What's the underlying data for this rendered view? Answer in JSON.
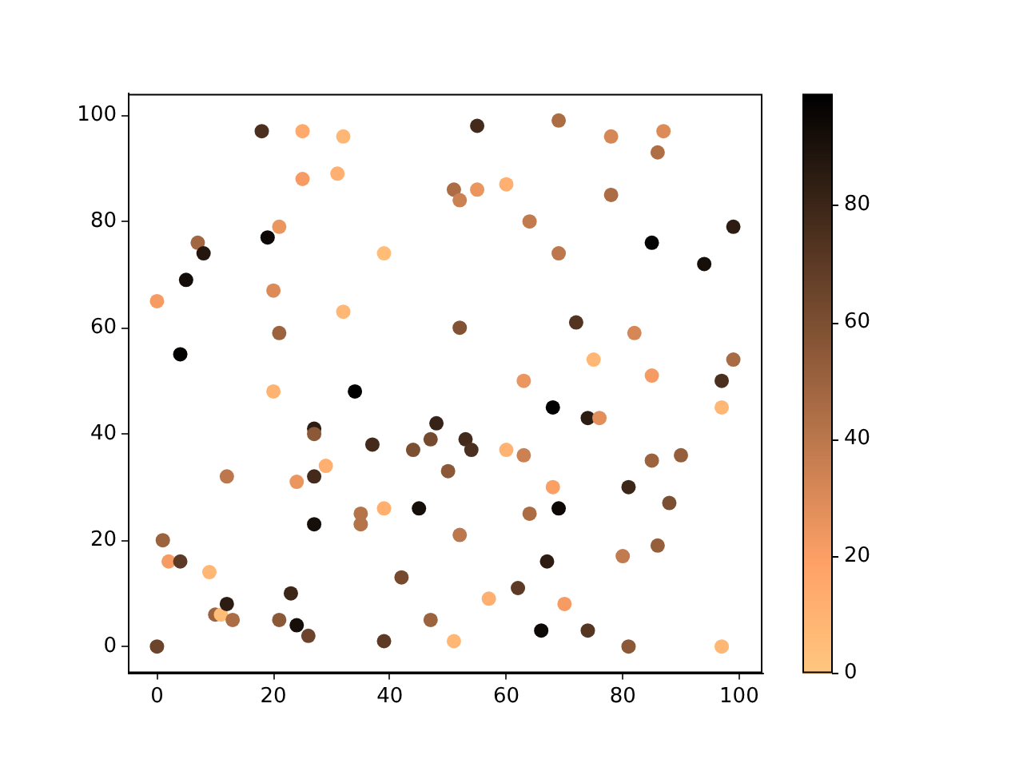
{
  "chart_data": {
    "type": "scatter",
    "x": [
      18,
      25,
      32,
      25,
      31,
      21,
      19,
      7,
      8,
      39,
      5,
      0,
      20,
      32,
      21,
      4,
      55,
      69,
      78,
      87,
      86,
      51,
      52,
      55,
      60,
      78,
      64,
      69,
      85,
      99,
      94,
      52,
      72,
      82,
      75,
      99,
      63,
      85,
      97,
      20,
      34,
      27,
      27,
      37,
      44,
      47,
      48,
      50,
      12,
      24,
      27,
      29,
      35,
      35,
      27,
      39,
      45,
      1,
      2,
      4,
      9,
      10,
      11,
      12,
      13,
      23,
      21,
      24,
      26,
      39,
      42,
      47,
      0,
      68,
      74,
      76,
      97,
      53,
      54,
      60,
      63,
      85,
      90,
      68,
      81,
      88,
      69,
      64,
      52,
      80,
      86,
      67,
      62,
      57,
      70,
      51,
      66,
      74,
      81,
      97
    ],
    "values": [
      97,
      97,
      96,
      88,
      89,
      79,
      77,
      76,
      74,
      74,
      69,
      65,
      67,
      63,
      59,
      55,
      98,
      99,
      96,
      97,
      93,
      86,
      84,
      86,
      87,
      85,
      80,
      74,
      76,
      79,
      72,
      60,
      61,
      59,
      54,
      54,
      50,
      51,
      50,
      48,
      48,
      41,
      40,
      38,
      37,
      39,
      42,
      33,
      32,
      31,
      32,
      34,
      25,
      23,
      23,
      26,
      26,
      20,
      16,
      16,
      14,
      6,
      6,
      8,
      5,
      10,
      5,
      4,
      2,
      1,
      13,
      5,
      0,
      45,
      43,
      43,
      45,
      39,
      37,
      37,
      36,
      35,
      36,
      30,
      30,
      27,
      26,
      25,
      21,
      17,
      19,
      16,
      11,
      9,
      8,
      1,
      3,
      3,
      0,
      0
    ],
    "cvalues": [
      75,
      15,
      8,
      22,
      12,
      25,
      95,
      48,
      88,
      5,
      93,
      22,
      30,
      8,
      50,
      98,
      78,
      45,
      32,
      30,
      44,
      45,
      35,
      25,
      12,
      45,
      38,
      40,
      97,
      85,
      92,
      58,
      73,
      32,
      8,
      46,
      25,
      22,
      75,
      10,
      99,
      85,
      55,
      78,
      60,
      62,
      82,
      55,
      40,
      25,
      78,
      12,
      42,
      42,
      92,
      12,
      92,
      50,
      22,
      70,
      8,
      50,
      5,
      85,
      45,
      80,
      55,
      92,
      65,
      70,
      62,
      50,
      65,
      99,
      85,
      28,
      8,
      78,
      75,
      10,
      35,
      50,
      52,
      20,
      80,
      60,
      95,
      45,
      40,
      38,
      52,
      85,
      70,
      12,
      22,
      8,
      95,
      72,
      55,
      8
    ],
    "xlim": [
      -5,
      104
    ],
    "ylim": [
      -5,
      104
    ],
    "xticks": [
      0,
      20,
      40,
      60,
      80,
      100
    ],
    "yticks": [
      0,
      20,
      40,
      60,
      80,
      100
    ],
    "clim": [
      0,
      99
    ],
    "cticks": [
      0,
      20,
      40,
      60,
      80
    ],
    "marker": "circle"
  }
}
